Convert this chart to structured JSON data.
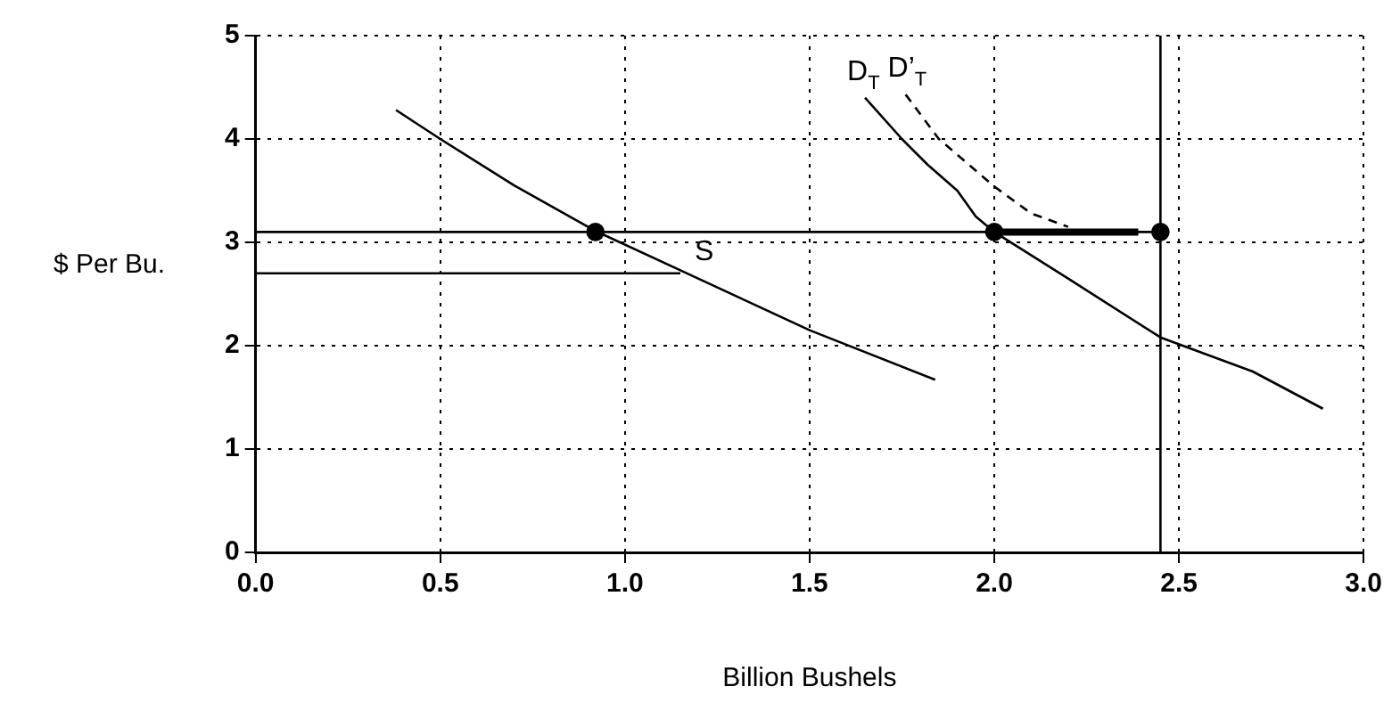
{
  "chart_data": {
    "type": "line",
    "xlabel": "Billion Bushels",
    "ylabel": "$ Per Bu.",
    "xlim": [
      0,
      3
    ],
    "ylim": [
      0,
      5
    ],
    "xticks": [
      {
        "value": 0,
        "label": "0.0"
      },
      {
        "value": 0.5,
        "label": "0.5"
      },
      {
        "value": 1,
        "label": "1.0"
      },
      {
        "value": 1.5,
        "label": "1.5"
      },
      {
        "value": 2,
        "label": "2.0"
      },
      {
        "value": 2.5,
        "label": "2.5"
      },
      {
        "value": 3,
        "label": "3.0"
      }
    ],
    "yticks": [
      0,
      1,
      2,
      3,
      4,
      5
    ],
    "grid": true,
    "legend": false,
    "series": [
      {
        "color": "#000000",
        "marker": "none",
        "x": [
          0.38,
          0.5,
          0.7,
          0.92,
          1.15,
          1.5,
          1.84
        ],
        "values": [
          4.28,
          4.0,
          3.55,
          3.11,
          2.73,
          2.15,
          1.67
        ]
      },
      {
        "name": "D$_{T}$",
        "color": "#000000",
        "marker": "none",
        "x": [
          1.65,
          1.75,
          1.82,
          1.9,
          1.95,
          2.0,
          2.2,
          2.45,
          2.7,
          2.89
        ],
        "values": [
          4.4,
          4.0,
          3.75,
          3.5,
          3.25,
          3.1,
          2.65,
          2.08,
          1.75,
          1.39
        ]
      },
      {
        "name": "D’$_{T}$",
        "color": "#000000",
        "marker": "none",
        "line_style": "dashed",
        "x": [
          1.76,
          1.85,
          2.0,
          2.1,
          2.2
        ],
        "values": [
          4.43,
          4.0,
          3.54,
          3.28,
          3.15
        ]
      },
      {
        "color": "#000000",
        "marker": "none",
        "x": [
          0,
          2.45
        ],
        "values": [
          3.1,
          3.1
        ]
      },
      {
        "color": "#000000",
        "marker": "none",
        "x": [
          0,
          1.15
        ],
        "values": [
          2.7,
          2.7
        ]
      },
      {
        "color": "#000000",
        "marker": "none",
        "x": [
          2.0,
          2.39
        ],
        "values": [
          3.1,
          3.1
        ]
      },
      {
        "type": "scatter",
        "color": "#000000",
        "marker": "circle",
        "x": [
          0.92,
          2.0,
          2.45
        ],
        "values": [
          3.1,
          3.1,
          3.1
        ]
      }
    ],
    "ref_lines": [
      {
        "axis": "x",
        "value": 2.45,
        "color": "#000000"
      }
    ],
    "annotations": [
      {
        "text": "S",
        "x": 1.15,
        "y": 2.73
      }
    ]
  }
}
